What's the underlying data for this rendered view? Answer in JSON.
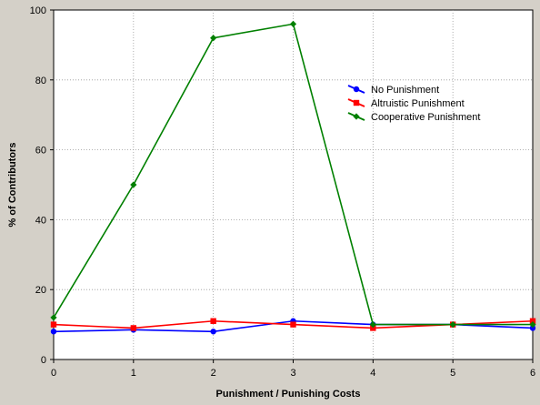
{
  "chart_data": {
    "type": "line",
    "title": "",
    "xlabel": "Punishment / Punishing Costs",
    "ylabel": "% of Contributors",
    "x": [
      0,
      1,
      2,
      3,
      4,
      5,
      6
    ],
    "xlim": [
      0,
      6
    ],
    "ylim": [
      0,
      100
    ],
    "x_ticks": [
      "0",
      "1",
      "2",
      "3",
      "4",
      "5",
      "6"
    ],
    "y_ticks": [
      "0",
      "20",
      "40",
      "60",
      "80",
      "100"
    ],
    "grid": true,
    "legend_position": "top-right",
    "series": [
      {
        "name": "No Punishment",
        "color": "#0000ff",
        "marker": "circle",
        "values": [
          8,
          8.5,
          8,
          11,
          10,
          10,
          9
        ]
      },
      {
        "name": "Altruistic Punishment",
        "color": "#ff0000",
        "marker": "square",
        "values": [
          10,
          9,
          11,
          10,
          9,
          10,
          11
        ]
      },
      {
        "name": "Cooperative Punishment",
        "color": "#008000",
        "marker": "diamond",
        "values": [
          12,
          50,
          92,
          96,
          10,
          10,
          10
        ]
      }
    ]
  }
}
